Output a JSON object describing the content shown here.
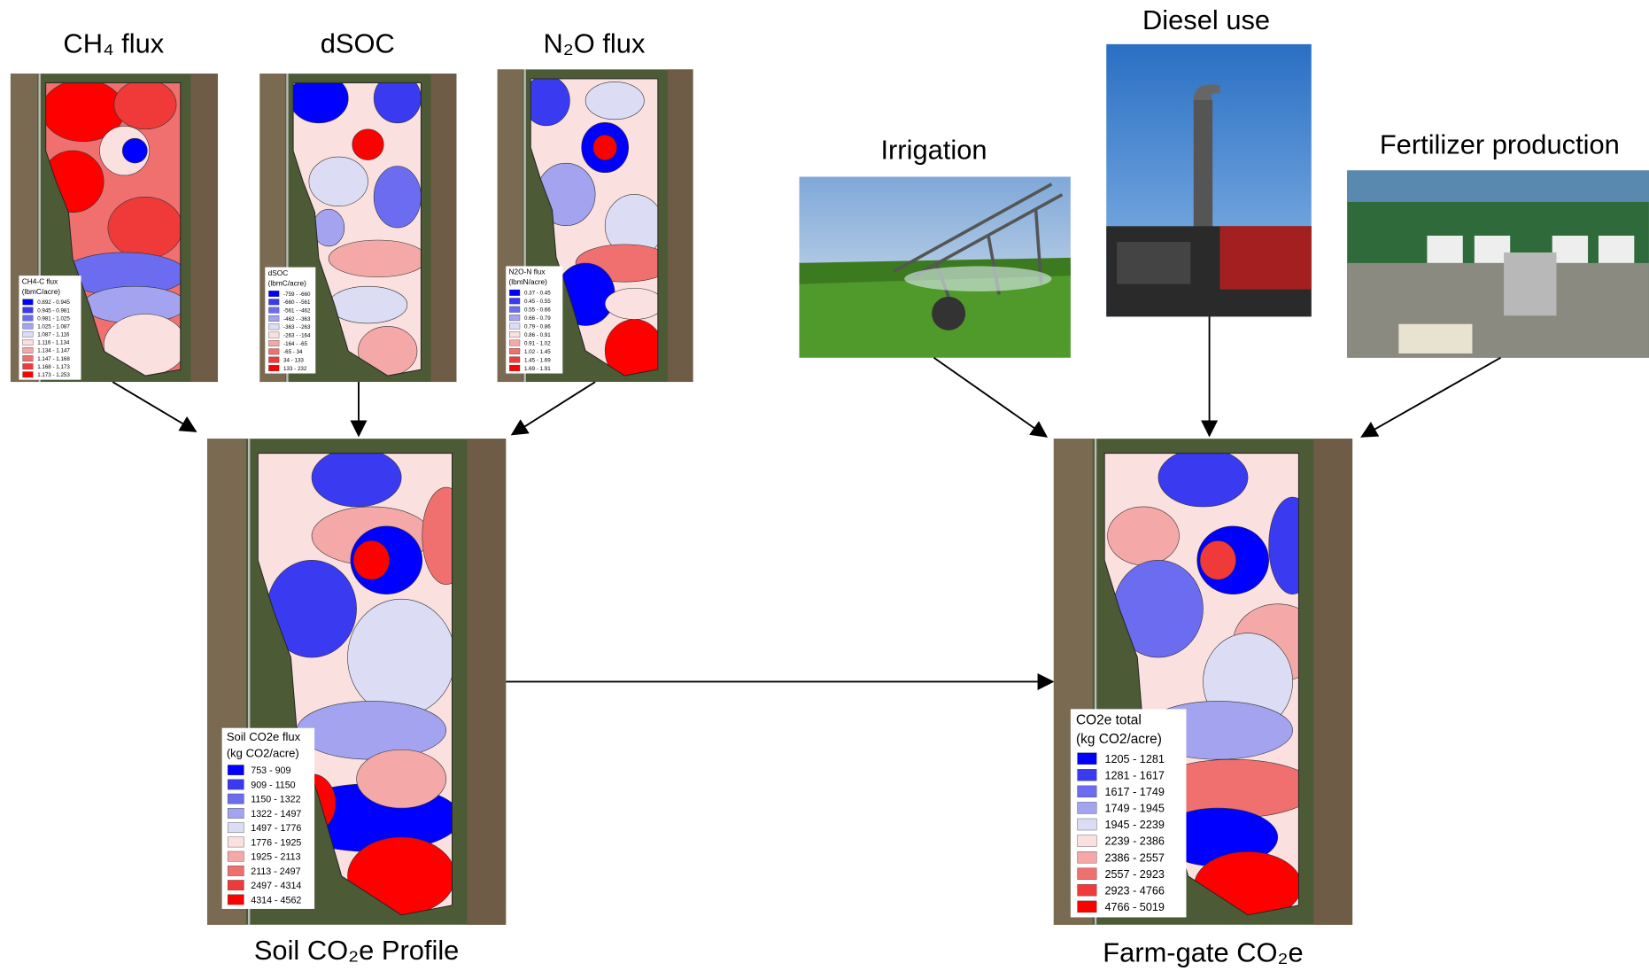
{
  "panels": {
    "ch4": {
      "title": "CH₄ flux",
      "legend_title": "CH4-C flux",
      "legend_unit": "(lbmC/acre)",
      "legend": [
        "0.892 - 0.945",
        "0.945 - 0.981",
        "0.981 - 1.025",
        "1.025 - 1.087",
        "1.087 - 1.116",
        "1.116 - 1.134",
        "1.134 - 1.147",
        "1.147 - 1.168",
        "1.168 - 1.173",
        "1.173 - 1.253"
      ]
    },
    "dsoc": {
      "title": "dSOC",
      "legend_title": "dSOC",
      "legend_unit": "(lbmC/acre)",
      "legend": [
        "-759 - -660",
        "-660 - -561",
        "-561 - -462",
        "-462 - -363",
        "-363 - -263",
        "-263 - -164",
        "-164 - -65",
        "-65 - 34",
        "34 - 133",
        "133 - 232"
      ]
    },
    "n2o": {
      "title": "N₂O flux",
      "legend_title": "N2O-N flux",
      "legend_unit": "(lbmN/acre)",
      "legend": [
        "0.37 - 0.45",
        "0.45 - 0.55",
        "0.55 - 0.66",
        "0.66 - 0.79",
        "0.79 - 0.86",
        "0.86 - 0.91",
        "0.91 - 1.02",
        "1.02 - 1.45",
        "1.45 - 1.69",
        "1.69 - 1.91"
      ]
    },
    "soil": {
      "title": "Soil CO₂e Profile",
      "legend_title": "Soil CO2e flux",
      "legend_unit": "(kg CO2/acre)",
      "legend": [
        "753 - 909",
        "909 - 1150",
        "1150 - 1322",
        "1322 - 1497",
        "1497 - 1776",
        "1776 - 1925",
        "1925 - 2113",
        "2113 - 2497",
        "2497 - 4314",
        "4314 - 4562"
      ]
    },
    "farm": {
      "title": "Farm-gate CO₂e",
      "legend_title": "CO2e total",
      "legend_unit": "(kg CO2/acre)",
      "legend": [
        "1205 - 1281",
        "1281 - 1617",
        "1617 - 1749",
        "1749 - 1945",
        "1945 - 2239",
        "2239 - 2386",
        "2386 - 2557",
        "2557 - 2923",
        "2923 - 4766",
        "4766 - 5019"
      ]
    }
  },
  "photos": {
    "irrigation": {
      "title": "Irrigation"
    },
    "diesel": {
      "title": "Diesel use"
    },
    "fertilizer": {
      "title": "Fertilizer production"
    }
  }
}
